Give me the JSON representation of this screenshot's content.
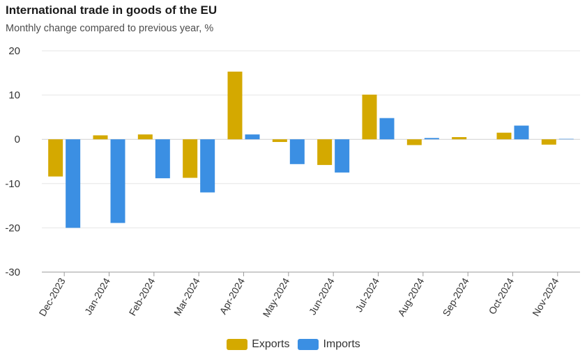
{
  "header": {
    "title": "International trade in goods of the EU",
    "subtitle": "Monthly change compared to previous year, %"
  },
  "colors": {
    "exports": "#d4a900",
    "imports": "#3b8fe3",
    "grid": "#e6e6e6",
    "axis": "#9a9a9a"
  },
  "chart_data": {
    "type": "bar",
    "title": "International trade in goods of the EU",
    "subtitle": "Monthly change compared to previous year, %",
    "xlabel": "",
    "ylabel": "",
    "ylim": [
      -30,
      20
    ],
    "yticks": [
      20,
      10,
      0,
      -10,
      -20,
      -30
    ],
    "grid": true,
    "legend_position": "bottom-center",
    "categories": [
      "Dec-2023",
      "Jan-2024",
      "Feb-2024",
      "Mar-2024",
      "Apr-2024",
      "May-2024",
      "Jun-2024",
      "Jul-2024",
      "Aug-2024",
      "Sep-2024",
      "Oct-2024",
      "Nov-2024"
    ],
    "series": [
      {
        "name": "Exports",
        "values": [
          -8.4,
          0.9,
          1.1,
          -8.7,
          15.3,
          -0.6,
          -5.8,
          10.1,
          -1.3,
          0.5,
          1.5,
          -1.2
        ]
      },
      {
        "name": "Imports",
        "values": [
          -20.0,
          -18.9,
          -8.8,
          -12.0,
          1.1,
          -5.6,
          -7.5,
          4.8,
          0.3,
          0.0,
          3.1,
          0.1
        ]
      }
    ]
  }
}
